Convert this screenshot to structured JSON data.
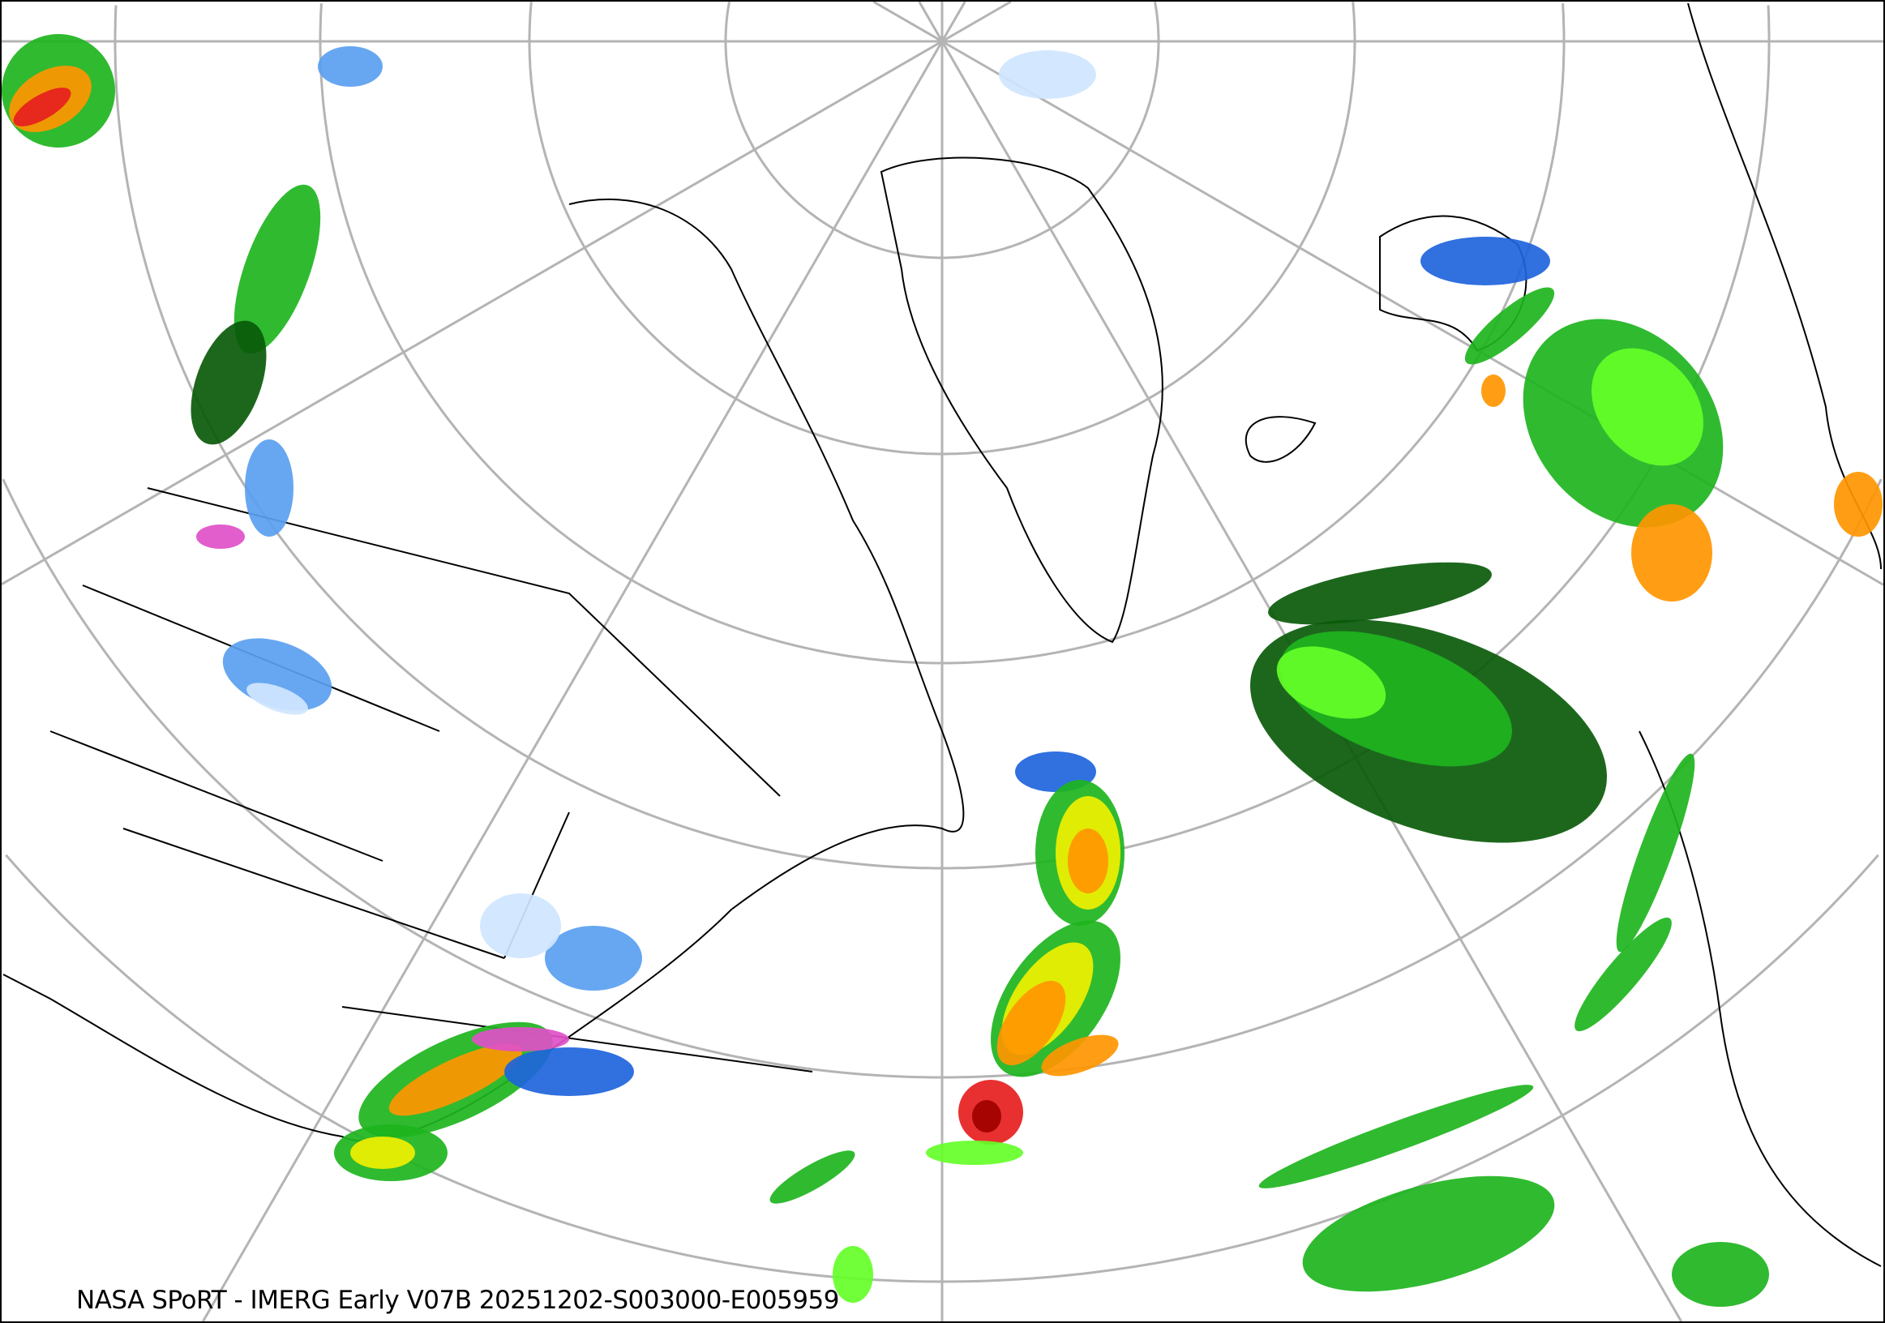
{
  "caption": "NASA SPoRT - IMERG Early V07B 20251202-S003000-E005959",
  "map": {
    "projection": "north-polar-stereographic",
    "product": "IMERG Early precipitation rate",
    "colors": {
      "graticule": "#b4b4b4",
      "coastline": "#000000",
      "light_snow": "#cfe6ff",
      "snow": "#5aa0f0",
      "heavy_snow": "#1e64dc",
      "mix": "#e050c8",
      "very_light_rain": "#0a5a0a",
      "light_rain": "#1eb41e",
      "moderate_rain": "#64ff28",
      "rain": "#f0f000",
      "heavy_rain": "#ff9600",
      "very_heavy_rain": "#e61e1e",
      "extreme_rain": "#a00000"
    }
  }
}
